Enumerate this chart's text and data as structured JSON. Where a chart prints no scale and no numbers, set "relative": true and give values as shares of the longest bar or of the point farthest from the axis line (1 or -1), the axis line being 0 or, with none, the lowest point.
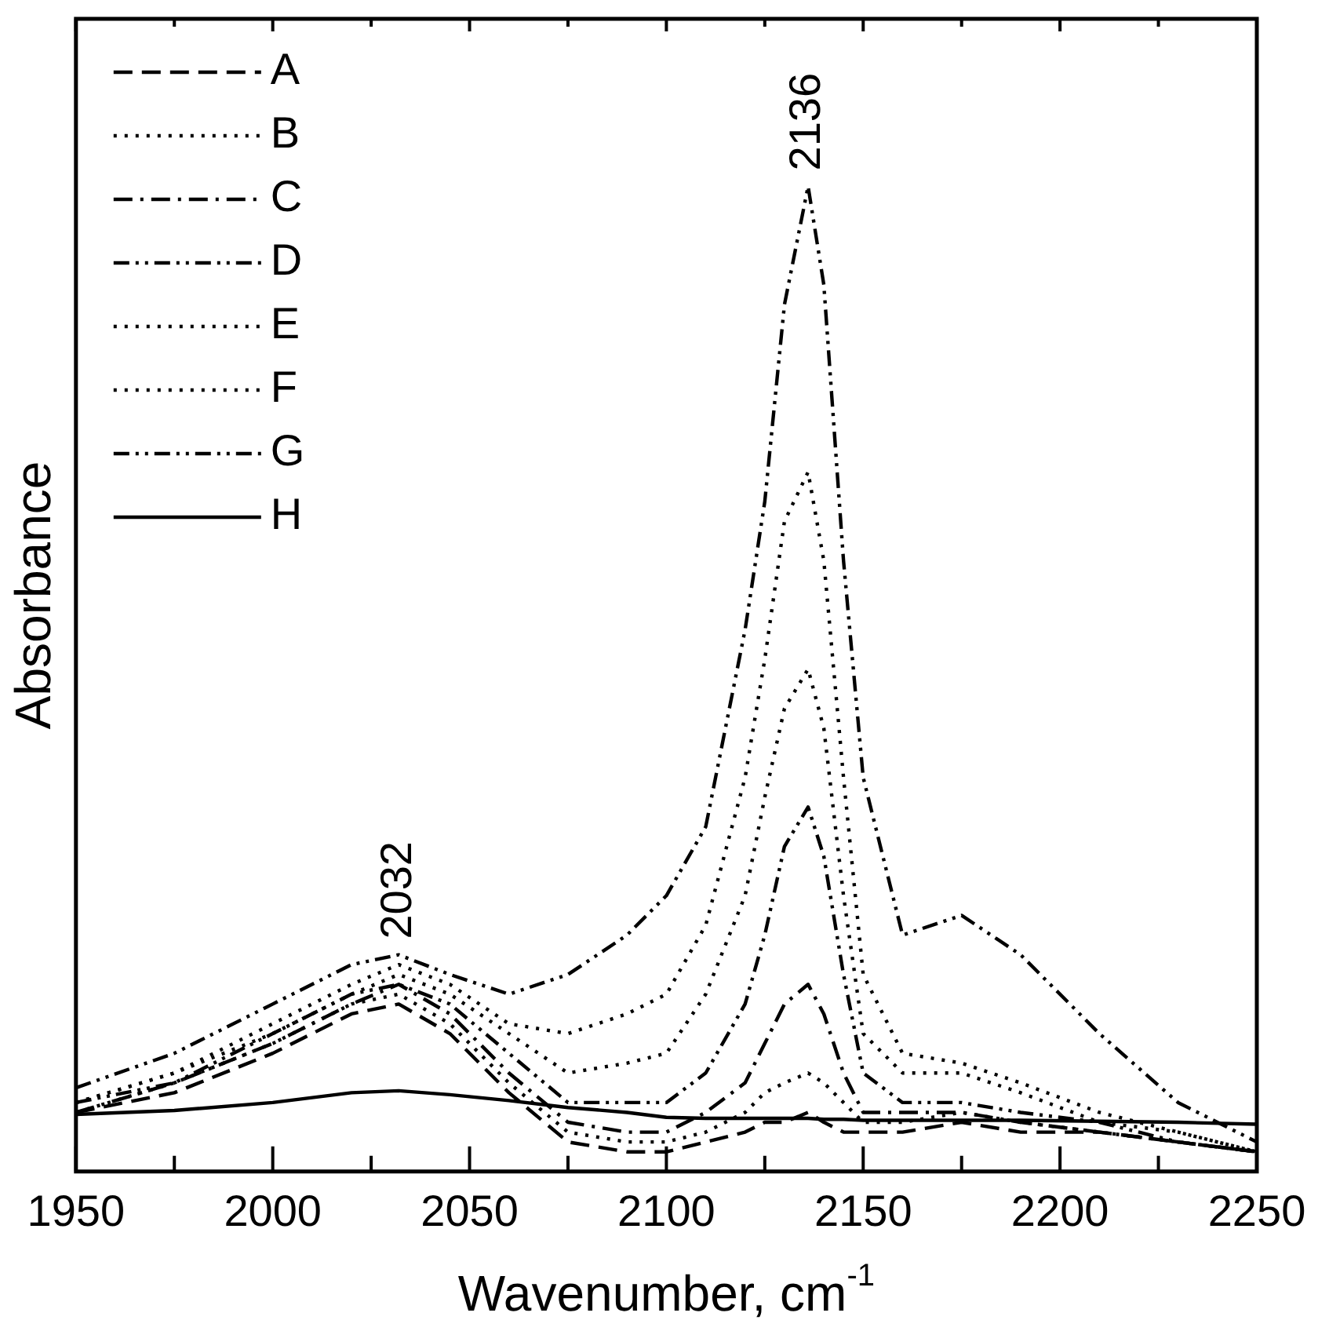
{
  "chart_data": {
    "type": "line",
    "relative": true,
    "xlabel": "Wavenumber, cm$^{-1}$",
    "ylabel": "Absorbance",
    "legend": "top left",
    "grid": false,
    "marker": "none",
    "x": [
      1950,
      1975,
      2000,
      2020,
      2032,
      2045,
      2060,
      2075,
      2090,
      2100,
      2110,
      2120,
      2125,
      2130,
      2136,
      2140,
      2145,
      2150,
      2160,
      2175,
      2190,
      2210,
      2230,
      2250
    ],
    "xlim": [
      1950,
      2250
    ],
    "xticks": [
      1950,
      {
        "value": 1975,
        "label": null
      },
      2000,
      {
        "value": 2025,
        "label": null
      },
      2050,
      {
        "value": 2075,
        "label": null
      },
      2100,
      {
        "value": 2125,
        "label": null
      },
      2150,
      {
        "value": 2175,
        "label": null
      },
      2200,
      {
        "value": 2225,
        "label": null
      },
      2250
    ],
    "annotations": [
      {
        "text": "2032",
        "x": 2032,
        "y": 0.22
      },
      {
        "text": "2136",
        "x": 2136,
        "y": 1.0
      }
    ],
    "series": [
      {
        "name": "A",
        "color": "#000000",
        "line_style": "dashed",
        "values": [
          0.06,
          0.08,
          0.12,
          0.16,
          0.17,
          0.14,
          0.08,
          0.03,
          0.02,
          0.02,
          0.03,
          0.04,
          0.05,
          0.05,
          0.06,
          0.05,
          0.04,
          0.04,
          0.04,
          0.05,
          0.04,
          0.04,
          0.03,
          0.02
        ]
      },
      {
        "name": "B",
        "color": "#000000",
        "line_style": "dotted",
        "values": [
          0.06,
          0.09,
          0.13,
          0.17,
          0.18,
          0.15,
          0.09,
          0.04,
          0.03,
          0.03,
          0.04,
          0.06,
          0.08,
          0.09,
          0.1,
          0.09,
          0.07,
          0.05,
          0.05,
          0.06,
          0.05,
          0.04,
          0.03,
          0.02
        ]
      },
      {
        "name": "C",
        "color": "#000000",
        "line_style": "dashdot",
        "values": [
          0.06,
          0.09,
          0.13,
          0.17,
          0.19,
          0.16,
          0.1,
          0.05,
          0.04,
          0.04,
          0.06,
          0.09,
          0.13,
          0.17,
          0.19,
          0.16,
          0.1,
          0.06,
          0.06,
          0.06,
          0.05,
          0.04,
          0.03,
          0.02
        ]
      },
      {
        "name": "D",
        "color": "#000000",
        "line_style": "dashdotdot",
        "values": [
          0.07,
          0.09,
          0.14,
          0.18,
          0.19,
          0.17,
          0.12,
          0.07,
          0.07,
          0.07,
          0.1,
          0.17,
          0.24,
          0.33,
          0.37,
          0.32,
          0.2,
          0.1,
          0.07,
          0.07,
          0.06,
          0.05,
          0.03,
          0.02
        ]
      },
      {
        "name": "E",
        "color": "#000000",
        "line_style": "dotted",
        "values": [
          0.07,
          0.1,
          0.14,
          0.18,
          0.2,
          0.18,
          0.14,
          0.1,
          0.11,
          0.12,
          0.18,
          0.28,
          0.38,
          0.47,
          0.51,
          0.45,
          0.28,
          0.14,
          0.1,
          0.1,
          0.08,
          0.05,
          0.04,
          0.02
        ]
      },
      {
        "name": "F",
        "color": "#000000",
        "line_style": "dotted",
        "values": [
          0.07,
          0.1,
          0.15,
          0.19,
          0.21,
          0.19,
          0.15,
          0.14,
          0.16,
          0.18,
          0.25,
          0.4,
          0.52,
          0.66,
          0.71,
          0.62,
          0.4,
          0.2,
          0.12,
          0.11,
          0.09,
          0.06,
          0.04,
          0.02
        ]
      },
      {
        "name": "G",
        "color": "#000000",
        "line_style": "dashdotdot",
        "values": [
          0.085,
          0.12,
          0.17,
          0.21,
          0.22,
          0.2,
          0.18,
          0.2,
          0.24,
          0.28,
          0.35,
          0.55,
          0.68,
          0.88,
          1.0,
          0.9,
          0.62,
          0.4,
          0.24,
          0.26,
          0.22,
          0.14,
          0.07,
          0.03
        ]
      },
      {
        "name": "H",
        "color": "#000000",
        "line_style": "solid",
        "values": [
          0.058,
          0.062,
          0.07,
          0.08,
          0.082,
          0.078,
          0.072,
          0.065,
          0.06,
          0.055,
          0.054,
          0.054,
          0.054,
          0.054,
          0.054,
          0.053,
          0.053,
          0.052,
          0.052,
          0.052,
          0.052,
          0.051,
          0.05,
          0.048
        ]
      }
    ]
  }
}
